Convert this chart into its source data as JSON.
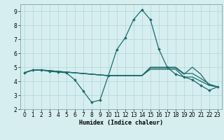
{
  "xlabel": "Humidex (Indice chaleur)",
  "bg_color": "#d6eef0",
  "grid_color": "#b8d8dc",
  "line_color": "#1a6b6b",
  "xlim": [
    -0.5,
    23.5
  ],
  "ylim": [
    2,
    9.5
  ],
  "yticks": [
    2,
    3,
    4,
    5,
    6,
    7,
    8,
    9
  ],
  "xticks": [
    0,
    1,
    2,
    3,
    4,
    5,
    6,
    7,
    8,
    9,
    10,
    11,
    12,
    13,
    14,
    15,
    16,
    17,
    18,
    19,
    20,
    21,
    22,
    23
  ],
  "lines": [
    {
      "x": [
        0,
        1,
        2,
        3,
        4,
        5,
        6,
        7,
        8,
        9,
        10,
        11,
        12,
        13,
        14,
        15,
        16,
        17,
        18,
        19,
        20,
        21,
        22,
        23
      ],
      "y": [
        4.6,
        4.8,
        4.8,
        4.7,
        4.65,
        4.6,
        4.1,
        3.3,
        2.5,
        2.65,
        4.4,
        6.25,
        7.1,
        8.4,
        9.1,
        8.4,
        6.3,
        5.0,
        4.5,
        4.3,
        4.1,
        3.7,
        3.35,
        3.6
      ],
      "marker": true
    },
    {
      "x": [
        0,
        1,
        2,
        3,
        4,
        5,
        6,
        7,
        8,
        9,
        10,
        11,
        12,
        13,
        14,
        15,
        16,
        17,
        18,
        19,
        20,
        21,
        22,
        23
      ],
      "y": [
        4.6,
        4.8,
        4.8,
        4.75,
        4.7,
        4.65,
        4.6,
        4.55,
        4.5,
        4.45,
        4.4,
        4.4,
        4.4,
        4.4,
        4.4,
        4.85,
        4.85,
        4.85,
        4.85,
        4.3,
        4.3,
        4.0,
        3.7,
        3.6
      ],
      "marker": false
    },
    {
      "x": [
        0,
        1,
        2,
        3,
        4,
        5,
        6,
        7,
        8,
        9,
        10,
        11,
        12,
        13,
        14,
        15,
        16,
        17,
        18,
        19,
        20,
        21,
        22,
        23
      ],
      "y": [
        4.6,
        4.8,
        4.8,
        4.75,
        4.7,
        4.65,
        4.6,
        4.55,
        4.5,
        4.45,
        4.4,
        4.4,
        4.4,
        4.4,
        4.4,
        4.95,
        4.95,
        4.95,
        4.95,
        4.5,
        5.0,
        4.5,
        3.7,
        3.6
      ],
      "marker": false
    },
    {
      "x": [
        0,
        1,
        2,
        3,
        4,
        5,
        6,
        7,
        8,
        9,
        10,
        11,
        12,
        13,
        14,
        15,
        16,
        17,
        18,
        19,
        20,
        21,
        22,
        23
      ],
      "y": [
        4.6,
        4.8,
        4.8,
        4.75,
        4.7,
        4.65,
        4.6,
        4.55,
        4.5,
        4.45,
        4.4,
        4.4,
        4.4,
        4.4,
        4.4,
        5.0,
        5.0,
        5.0,
        5.0,
        4.55,
        4.55,
        4.2,
        3.8,
        3.6
      ],
      "marker": false
    }
  ]
}
